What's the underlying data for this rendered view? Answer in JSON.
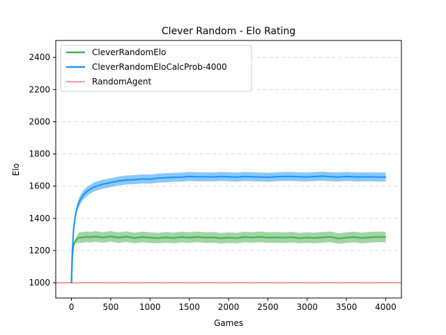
{
  "chart_data": {
    "type": "line",
    "title": "Clever Random - Elo Rating",
    "xlabel": "Games",
    "ylabel": "Elo",
    "xlim": [
      -200,
      4200
    ],
    "ylim": [
      905,
      2505
    ],
    "x_ticks": [
      0,
      500,
      1000,
      1500,
      2000,
      2500,
      3000,
      3500,
      4000
    ],
    "y_ticks": [
      1000,
      1200,
      1400,
      1600,
      1800,
      2000,
      2200,
      2400
    ],
    "grid": "horizontal-dashed",
    "legend_position": "top-left",
    "series": [
      {
        "name": "CleverRandomElo",
        "color": "#4caf50",
        "band_color": "#81c784",
        "x": [
          0,
          10,
          25,
          50,
          75,
          100,
          150,
          200,
          250,
          300,
          400,
          500,
          600,
          700,
          800,
          900,
          1000,
          1100,
          1200,
          1300,
          1400,
          1500,
          1600,
          1700,
          1800,
          1900,
          2000,
          2100,
          2200,
          2300,
          2400,
          2500,
          2600,
          2700,
          2800,
          2900,
          3000,
          3100,
          3200,
          3300,
          3400,
          3500,
          3600,
          3700,
          3800,
          3900,
          4000
        ],
        "values": [
          1000,
          1150,
          1230,
          1262,
          1272,
          1280,
          1282,
          1285,
          1283,
          1287,
          1281,
          1288,
          1280,
          1286,
          1278,
          1284,
          1280,
          1277,
          1282,
          1278,
          1284,
          1280,
          1285,
          1280,
          1282,
          1276,
          1280,
          1277,
          1284,
          1281,
          1285,
          1280,
          1282,
          1279,
          1283,
          1277,
          1280,
          1278,
          1282,
          1285,
          1275,
          1280,
          1284,
          1278,
          1282,
          1285,
          1283
        ],
        "band_half_width": 33
      },
      {
        "name": "CleverRandomEloCalcProb-4000",
        "color": "#2196f3",
        "band_color": "#64b5f6",
        "x": [
          0,
          10,
          25,
          50,
          75,
          100,
          150,
          200,
          250,
          300,
          400,
          500,
          600,
          700,
          800,
          900,
          1000,
          1100,
          1200,
          1300,
          1400,
          1500,
          1600,
          1700,
          1800,
          1900,
          2000,
          2100,
          2200,
          2300,
          2400,
          2500,
          2600,
          2700,
          2800,
          2900,
          3000,
          3100,
          3200,
          3300,
          3400,
          3500,
          3600,
          3700,
          3800,
          3900,
          4000
        ],
        "values": [
          1000,
          1180,
          1320,
          1420,
          1470,
          1505,
          1545,
          1568,
          1585,
          1597,
          1612,
          1622,
          1632,
          1638,
          1640,
          1645,
          1643,
          1650,
          1652,
          1655,
          1656,
          1660,
          1658,
          1658,
          1657,
          1660,
          1658,
          1656,
          1660,
          1658,
          1657,
          1655,
          1658,
          1660,
          1660,
          1658,
          1657,
          1660,
          1662,
          1658,
          1657,
          1660,
          1658,
          1657,
          1658,
          1656,
          1657
        ],
        "band_half_width": 28
      },
      {
        "name": "RandomAgent",
        "color": "#e53935",
        "constant": 1000
      }
    ]
  }
}
